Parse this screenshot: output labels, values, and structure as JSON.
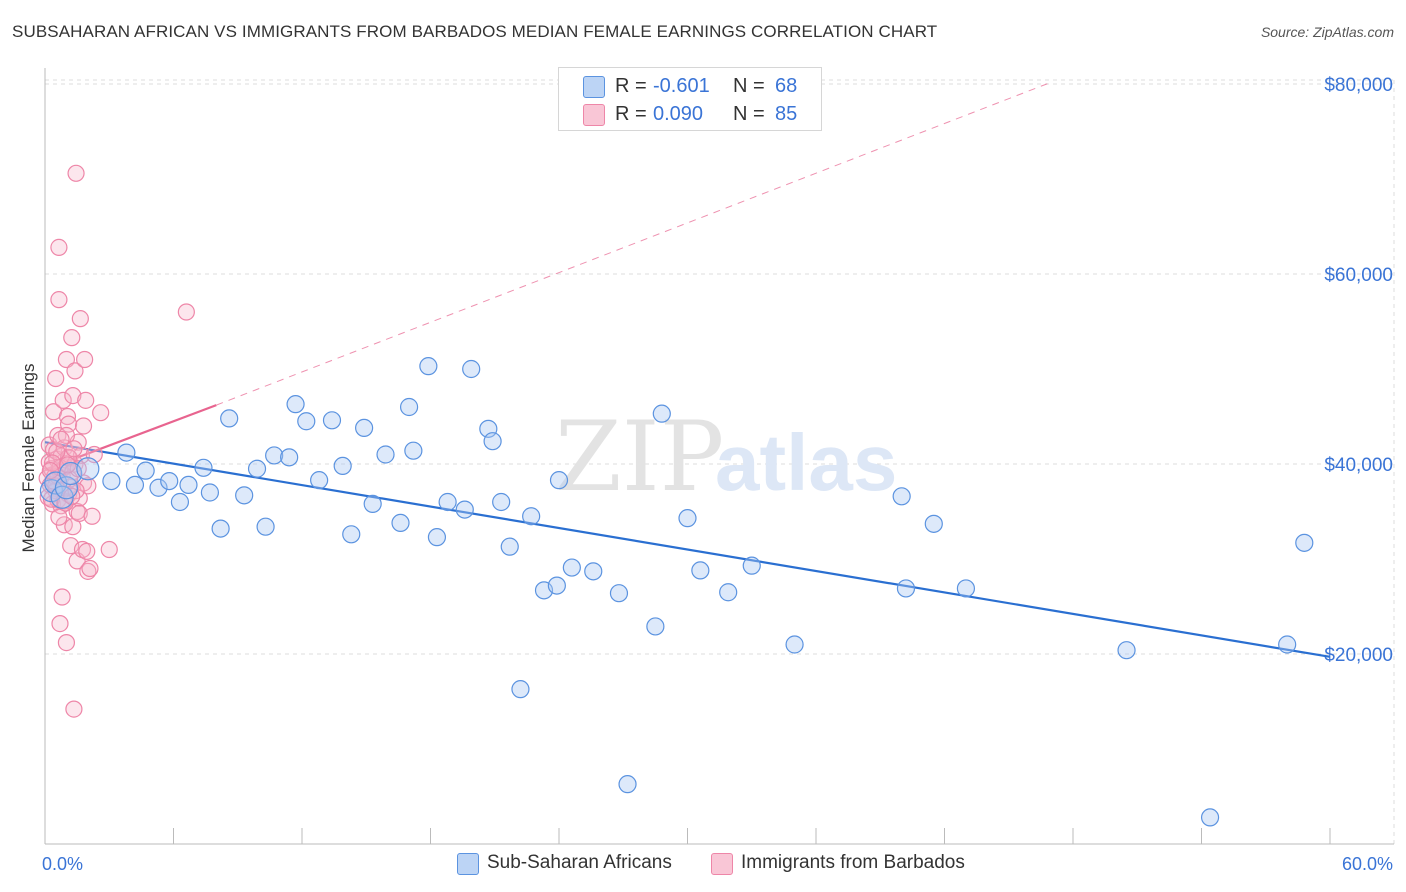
{
  "title": "SUBSAHARAN AFRICAN VS IMMIGRANTS FROM BARBADOS MEDIAN FEMALE EARNINGS CORRELATION CHART",
  "source": "Source: ZipAtlas.com",
  "legend": {
    "r_label": "R =",
    "n_label": "N =",
    "rows": [
      {
        "r": "-0.601",
        "n": "68"
      },
      {
        "r": "0.090",
        "n": "85"
      }
    ]
  },
  "colors": {
    "blue": "#5b93e0",
    "blue_fill": "#a9c8f2",
    "blue_line": "#2a6fd1",
    "pink": "#ee86a8",
    "pink_fill": "#f6b7cb",
    "pink_line": "#e8648f",
    "tick_label": "#3a74d6",
    "grid": "#dddddd"
  },
  "watermark": {
    "zip": "ZIP",
    "atlas": "atlas"
  },
  "chart_data": {
    "type": "scatter",
    "title": "SUBSAHARAN AFRICAN VS IMMIGRANTS FROM BARBADOS MEDIAN FEMALE EARNINGS CORRELATION CHART",
    "xlabel": "",
    "ylabel": "Median Female Earnings",
    "xlim": [
      0,
      60
    ],
    "ylim": [
      0,
      82000
    ],
    "x_tick_labels": [
      "0.0%",
      "60.0%"
    ],
    "y_ticks": [
      20000,
      40000,
      60000,
      80000
    ],
    "y_tick_labels": [
      "$20,000",
      "$40,000",
      "$60,000",
      "$80,000"
    ],
    "grid": true,
    "series": [
      {
        "name": "Sub-Saharan Africans",
        "color": "blue",
        "R": -0.601,
        "N": 68,
        "trend": {
          "x0": 0,
          "y0": 42300,
          "x1": 60,
          "y1": 19700,
          "solid": true
        },
        "points": [
          [
            0.3,
            37200
          ],
          [
            0.5,
            38000
          ],
          [
            0.8,
            36500
          ],
          [
            1.0,
            37500
          ],
          [
            1.2,
            39000
          ],
          [
            2.0,
            39500
          ],
          [
            3.1,
            38200
          ],
          [
            3.8,
            41200
          ],
          [
            4.2,
            37800
          ],
          [
            4.7,
            39300
          ],
          [
            5.3,
            37500
          ],
          [
            5.8,
            38200
          ],
          [
            6.3,
            36000
          ],
          [
            6.7,
            37800
          ],
          [
            7.4,
            39600
          ],
          [
            7.7,
            37000
          ],
          [
            8.2,
            33200
          ],
          [
            8.6,
            44800
          ],
          [
            9.3,
            36700
          ],
          [
            9.9,
            39500
          ],
          [
            10.3,
            33400
          ],
          [
            10.7,
            40900
          ],
          [
            11.4,
            40700
          ],
          [
            11.7,
            46300
          ],
          [
            12.2,
            44500
          ],
          [
            12.8,
            38300
          ],
          [
            13.4,
            44600
          ],
          [
            13.9,
            39800
          ],
          [
            14.3,
            32600
          ],
          [
            14.9,
            43800
          ],
          [
            15.3,
            35800
          ],
          [
            15.9,
            41000
          ],
          [
            16.6,
            33800
          ],
          [
            17.0,
            46000
          ],
          [
            17.2,
            41400
          ],
          [
            17.9,
            50300
          ],
          [
            18.3,
            32300
          ],
          [
            18.8,
            36000
          ],
          [
            19.6,
            35200
          ],
          [
            19.9,
            50000
          ],
          [
            20.7,
            43700
          ],
          [
            20.9,
            42400
          ],
          [
            21.3,
            36000
          ],
          [
            21.7,
            31300
          ],
          [
            22.2,
            16300
          ],
          [
            22.7,
            34500
          ],
          [
            23.3,
            26700
          ],
          [
            23.9,
            27200
          ],
          [
            24.0,
            38300
          ],
          [
            24.6,
            29100
          ],
          [
            25.6,
            28700
          ],
          [
            26.8,
            26400
          ],
          [
            27.2,
            6300
          ],
          [
            28.5,
            22900
          ],
          [
            28.8,
            45300
          ],
          [
            30.0,
            34300
          ],
          [
            30.6,
            28800
          ],
          [
            31.9,
            26500
          ],
          [
            33.0,
            29300
          ],
          [
            35.0,
            21000
          ],
          [
            40.0,
            36600
          ],
          [
            40.2,
            26900
          ],
          [
            41.5,
            33700
          ],
          [
            43.0,
            26900
          ],
          [
            50.5,
            20400
          ],
          [
            54.4,
            2800
          ],
          [
            58.0,
            21000
          ],
          [
            58.8,
            31700
          ]
        ]
      },
      {
        "name": "Immigrants from Barbados",
        "color": "pink",
        "R": 0.09,
        "N": 85,
        "trend": {
          "x0": 0,
          "y0": 39400,
          "x1": 8,
          "y1": 46200,
          "dash_x1": 47,
          "dash_y1": 80200
        },
        "points": [
          [
            0.1,
            38500
          ],
          [
            0.15,
            36500
          ],
          [
            0.2,
            40200
          ],
          [
            0.2,
            42000
          ],
          [
            0.25,
            37800
          ],
          [
            0.3,
            39500
          ],
          [
            0.35,
            35800
          ],
          [
            0.4,
            41500
          ],
          [
            0.4,
            45500
          ],
          [
            0.45,
            38700
          ],
          [
            0.5,
            37200
          ],
          [
            0.5,
            49000
          ],
          [
            0.55,
            40500
          ],
          [
            0.6,
            36200
          ],
          [
            0.6,
            43000
          ],
          [
            0.65,
            62800
          ],
          [
            0.65,
            57300
          ],
          [
            0.7,
            39200
          ],
          [
            0.7,
            23200
          ],
          [
            0.75,
            40800
          ],
          [
            0.75,
            35600
          ],
          [
            0.8,
            38800
          ],
          [
            0.8,
            26000
          ],
          [
            0.85,
            46700
          ],
          [
            0.9,
            41700
          ],
          [
            0.9,
            33600
          ],
          [
            0.95,
            39700
          ],
          [
            1.0,
            51000
          ],
          [
            1.0,
            21200
          ],
          [
            1.05,
            45000
          ],
          [
            1.1,
            36800
          ],
          [
            1.1,
            44200
          ],
          [
            1.15,
            40600
          ],
          [
            1.2,
            37600
          ],
          [
            1.2,
            31400
          ],
          [
            1.25,
            53300
          ],
          [
            1.3,
            33400
          ],
          [
            1.3,
            47200
          ],
          [
            1.35,
            14200
          ],
          [
            1.4,
            49800
          ],
          [
            1.4,
            40000
          ],
          [
            1.45,
            70600
          ],
          [
            1.5,
            35000
          ],
          [
            1.5,
            29800
          ],
          [
            1.55,
            42300
          ],
          [
            1.6,
            36400
          ],
          [
            1.6,
            34800
          ],
          [
            1.65,
            55300
          ],
          [
            1.7,
            40900
          ],
          [
            1.75,
            31000
          ],
          [
            1.8,
            44000
          ],
          [
            1.8,
            38000
          ],
          [
            1.85,
            51000
          ],
          [
            1.9,
            46700
          ],
          [
            1.95,
            30800
          ],
          [
            2.0,
            37700
          ],
          [
            2.0,
            28700
          ],
          [
            2.1,
            29000
          ],
          [
            2.2,
            34500
          ],
          [
            2.3,
            41000
          ],
          [
            2.6,
            45400
          ],
          [
            3.0,
            31000
          ],
          [
            6.6,
            56000
          ],
          [
            0.5,
            37700
          ],
          [
            0.6,
            38700
          ],
          [
            0.9,
            36100
          ],
          [
            1.0,
            43000
          ],
          [
            0.3,
            36300
          ],
          [
            0.4,
            38200
          ],
          [
            0.7,
            39600
          ],
          [
            1.1,
            40700
          ],
          [
            1.3,
            39200
          ],
          [
            0.55,
            41300
          ],
          [
            0.85,
            37300
          ],
          [
            1.15,
            38400
          ],
          [
            1.45,
            37200
          ],
          [
            0.35,
            40100
          ],
          [
            0.65,
            34400
          ],
          [
            0.95,
            35900
          ],
          [
            1.25,
            36600
          ],
          [
            1.55,
            39500
          ],
          [
            0.25,
            39300
          ],
          [
            0.75,
            42600
          ],
          [
            1.05,
            39900
          ],
          [
            1.35,
            41600
          ]
        ]
      }
    ]
  }
}
